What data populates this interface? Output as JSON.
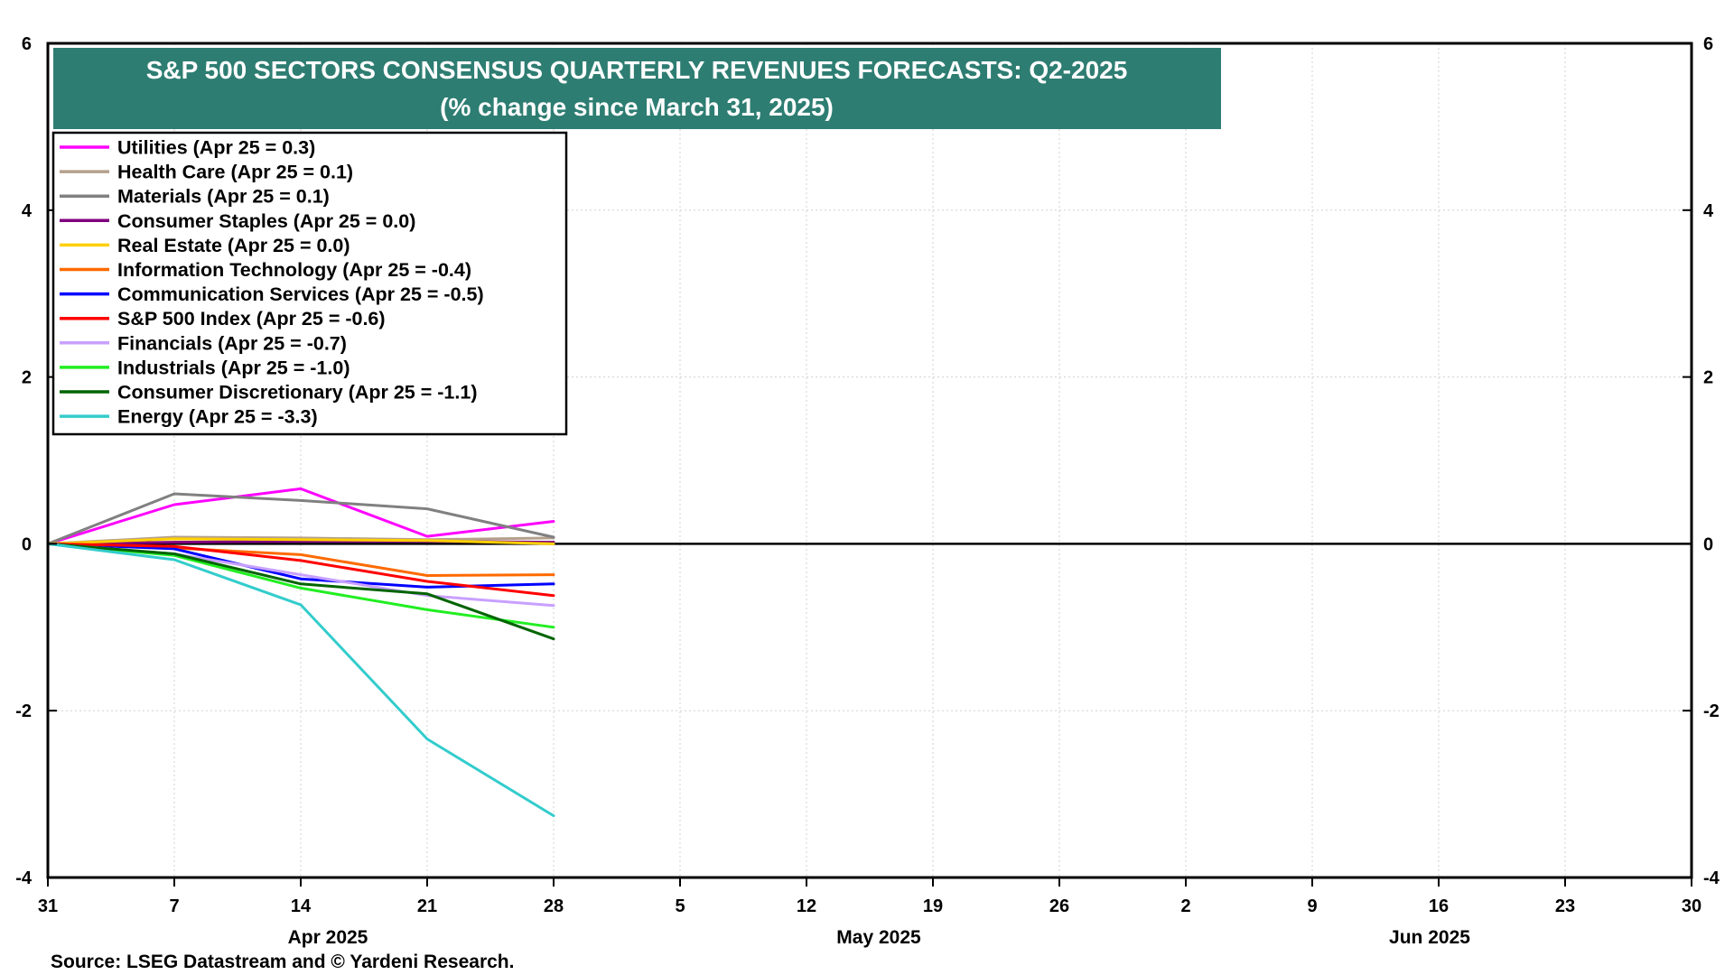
{
  "chart_data": {
    "type": "line",
    "title_lines": [
      "S&P 500 SECTORS CONSENSUS QUARTERLY REVENUES FORECASTS: Q2-2025",
      "(% change since March 31, 2025)"
    ],
    "x_tick_labels": [
      "31",
      "7",
      "14",
      "21",
      "28",
      "5",
      "12",
      "19",
      "26",
      "2",
      "9",
      "16",
      "23",
      "30"
    ],
    "x_dates": [
      "2025-03-31",
      "2025-04-07",
      "2025-04-14",
      "2025-04-21",
      "2025-04-28",
      "2025-05-05",
      "2025-05-12",
      "2025-05-19",
      "2025-05-26",
      "2025-06-02",
      "2025-06-09",
      "2025-06-16",
      "2025-06-23",
      "2025-06-30"
    ],
    "month_labels": [
      "Apr 2025",
      "May 2025",
      "Jun 2025"
    ],
    "y_ticks": [
      6,
      4,
      2,
      0,
      -2,
      -4
    ],
    "y_tick_labels": [
      "6",
      "4",
      "2",
      "0",
      "-2",
      "-4"
    ],
    "ylim": [
      -4,
      6
    ],
    "xlim": [
      "2025-03-31",
      "2025-06-30"
    ],
    "grid": true,
    "legend_position": "upper-left",
    "x": [
      "2025-03-31",
      "2025-04-07",
      "2025-04-14",
      "2025-04-21",
      "2025-04-28"
    ],
    "series": [
      {
        "name": "Utilities (Apr 25 = 0.3)",
        "color": "#ff00ff",
        "values": [
          0,
          0.47,
          0.66,
          0.09,
          0.27
        ]
      },
      {
        "name": "Health Care (Apr 25 = 0.1)",
        "color": "#b4a08c",
        "values": [
          0,
          0.08,
          0.07,
          0.05,
          0.07
        ]
      },
      {
        "name": "Materials (Apr 25 = 0.1)",
        "color": "#808080",
        "values": [
          0,
          0.6,
          0.52,
          0.42,
          0.08
        ]
      },
      {
        "name": "Consumer Staples (Apr 25 = 0.0)",
        "color": "#800080",
        "values": [
          0,
          0.02,
          0.03,
          0.03,
          0.02
        ]
      },
      {
        "name": "Real Estate (Apr 25 = 0.0)",
        "color": "#ffd000",
        "values": [
          0,
          0.06,
          0.05,
          0.04,
          0.0
        ]
      },
      {
        "name": "Information Technology (Apr 25 = -0.4)",
        "color": "#ff6a00",
        "values": [
          0,
          -0.05,
          -0.13,
          -0.38,
          -0.37
        ]
      },
      {
        "name": "Communication Services (Apr 25 = -0.5)",
        "color": "#0000ff",
        "values": [
          0,
          -0.06,
          -0.42,
          -0.52,
          -0.48
        ]
      },
      {
        "name": "S&P 500 Index (Apr 25 = -0.6)",
        "color": "#ff0000",
        "values": [
          0,
          -0.03,
          -0.2,
          -0.45,
          -0.62
        ]
      },
      {
        "name": "Financials (Apr 25 = -0.7)",
        "color": "#c8a0ff",
        "values": [
          0,
          -0.12,
          -0.37,
          -0.62,
          -0.74
        ]
      },
      {
        "name": "Industrials (Apr 25 = -1.0)",
        "color": "#22ee22",
        "values": [
          0,
          -0.14,
          -0.53,
          -0.79,
          -1.0
        ]
      },
      {
        "name": "Consumer Discretionary (Apr 25 = -1.1)",
        "color": "#006400",
        "values": [
          0,
          -0.12,
          -0.48,
          -0.6,
          -1.14
        ]
      },
      {
        "name": "Energy (Apr 25 = -3.3)",
        "color": "#33cccc",
        "values": [
          0,
          -0.19,
          -0.73,
          -2.34,
          -3.26
        ]
      }
    ],
    "title_bg_color": "#2e7d72",
    "source": "Source: LSEG Datastream and © Yardeni Research."
  }
}
